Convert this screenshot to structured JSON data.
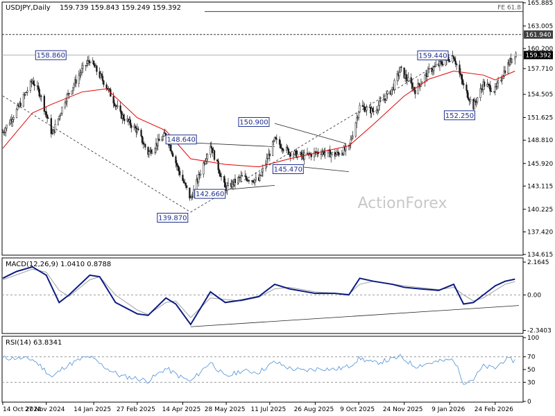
{
  "chart_data": [
    {
      "panel": "price",
      "type": "candlestick",
      "title": "USDJPY,Daily",
      "ohlc": "159.739 159.843 159.249 159.392",
      "watermark": "ActionForex",
      "ylim": [
        134.615,
        165.885
      ],
      "y_ticks": [
        "165.885",
        "163.005",
        "160.200",
        "157.710",
        "154.505",
        "151.625",
        "148.810",
        "145.920",
        "143.115",
        "140.225",
        "137.420",
        "134.615"
      ],
      "last_price": "159.392",
      "resistance_label": "161.940",
      "resistance_value": 161.94,
      "fe_label": "FE 61.8",
      "fe_value": 164.8,
      "pivot_labels": [
        {
          "text": "158.860",
          "date": "2024-12-03",
          "value": 158.86
        },
        {
          "text": "139.870",
          "date": "2025-04-22",
          "value": 139.87
        },
        {
          "text": "148.640",
          "date": "2025-03-28",
          "value": 148.64
        },
        {
          "text": "142.660",
          "date": "2025-05-27",
          "value": 142.66
        },
        {
          "text": "150.900",
          "date": "2025-07-16",
          "value": 150.9
        },
        {
          "text": "145.470",
          "date": "2025-08-14",
          "value": 145.47
        },
        {
          "text": "159.440",
          "date": "2026-01-13",
          "value": 159.44
        },
        {
          "text": "152.250",
          "date": "2026-02-02",
          "value": 152.25
        }
      ],
      "price_series": [
        [
          "2024-10-14",
          149.8
        ],
        [
          "2024-10-28",
          152.5
        ],
        [
          "2024-11-13",
          156.2
        ],
        [
          "2024-11-21",
          154.5
        ],
        [
          "2024-12-03",
          149.5
        ],
        [
          "2024-12-16",
          153.8
        ],
        [
          "2025-01-02",
          157.5
        ],
        [
          "2025-01-10",
          158.8
        ],
        [
          "2025-01-27",
          155.5
        ],
        [
          "2025-02-10",
          152.0
        ],
        [
          "2025-02-27",
          150.0
        ],
        [
          "2025-03-10",
          147.2
        ],
        [
          "2025-03-28",
          149.6
        ],
        [
          "2025-04-10",
          145.0
        ],
        [
          "2025-04-22",
          141.5
        ],
        [
          "2025-05-12",
          148.3
        ],
        [
          "2025-05-27",
          142.8
        ],
        [
          "2025-06-12",
          144.2
        ],
        [
          "2025-06-30",
          143.8
        ],
        [
          "2025-07-16",
          148.8
        ],
        [
          "2025-07-31",
          147.3
        ],
        [
          "2025-08-14",
          146.8
        ],
        [
          "2025-09-01",
          147.4
        ],
        [
          "2025-09-15",
          147.0
        ],
        [
          "2025-09-29",
          147.8
        ],
        [
          "2025-10-10",
          153.0
        ],
        [
          "2025-10-24",
          152.4
        ],
        [
          "2025-11-12",
          155.2
        ],
        [
          "2025-11-20",
          157.6
        ],
        [
          "2025-12-05",
          155.0
        ],
        [
          "2025-12-19",
          157.4
        ],
        [
          "2026-01-13",
          159.3
        ],
        [
          "2026-01-23",
          155.5
        ],
        [
          "2026-02-02",
          153.0
        ],
        [
          "2026-02-12",
          155.8
        ],
        [
          "2026-02-24",
          155.0
        ],
        [
          "2026-03-06",
          157.6
        ],
        [
          "2026-03-16",
          159.6
        ]
      ],
      "ma_series": [
        [
          "2024-10-14",
          147.8
        ],
        [
          "2024-11-13",
          152.2
        ],
        [
          "2024-12-03",
          153.3
        ],
        [
          "2025-01-02",
          154.8
        ],
        [
          "2025-01-27",
          155.2
        ],
        [
          "2025-02-27",
          151.6
        ],
        [
          "2025-03-28",
          150.0
        ],
        [
          "2025-04-22",
          146.5
        ],
        [
          "2025-05-27",
          145.8
        ],
        [
          "2025-06-30",
          145.5
        ],
        [
          "2025-07-31",
          146.5
        ],
        [
          "2025-08-26",
          147.2
        ],
        [
          "2025-09-29",
          148.1
        ],
        [
          "2025-10-24",
          150.8
        ],
        [
          "2025-11-24",
          154.3
        ],
        [
          "2025-12-19",
          156.4
        ],
        [
          "2026-01-13",
          157.4
        ],
        [
          "2026-02-12",
          156.9
        ],
        [
          "2026-02-24",
          156.3
        ],
        [
          "2026-03-16",
          157.4
        ]
      ],
      "x_ticks": [
        {
          "label": "14 Oct 2024",
          "date": "2024-10-14"
        },
        {
          "label": "27 Nov 2024",
          "date": "2024-11-27"
        },
        {
          "label": "14 Jan 2025",
          "date": "2025-01-14"
        },
        {
          "label": "27 Feb 2025",
          "date": "2025-02-27"
        },
        {
          "label": "14 Apr 2025",
          "date": "2025-04-14"
        },
        {
          "label": "28 May 2025",
          "date": "2025-05-28"
        },
        {
          "label": "11 Jul 2025",
          "date": "2025-07-11"
        },
        {
          "label": "26 Aug 2025",
          "date": "2025-08-26"
        },
        {
          "label": "9 Oct 2025",
          "date": "2025-10-09"
        },
        {
          "label": "24 Nov 2025",
          "date": "2025-11-24"
        },
        {
          "label": "9 Jan 2026",
          "date": "2026-01-09"
        },
        {
          "label": "24 Feb 2026",
          "date": "2026-02-24"
        }
      ],
      "trendlines": [
        {
          "from": [
            "2024-10-14",
            154.3
          ],
          "to": [
            "2025-04-22",
            139.87
          ],
          "style": "dashed"
        },
        {
          "from": [
            "2025-04-22",
            139.87
          ],
          "to": [
            "2026-01-13",
            159.44
          ],
          "style": "dashed"
        },
        {
          "from": [
            "2025-03-28",
            148.64
          ],
          "to": [
            "2025-07-16",
            148.0
          ],
          "style": "solid"
        },
        {
          "from": [
            "2025-05-27",
            142.66
          ],
          "to": [
            "2025-07-16",
            143.2
          ],
          "style": "solid"
        },
        {
          "from": [
            "2025-07-16",
            150.9
          ],
          "to": [
            "2025-09-26",
            148.4
          ],
          "style": "solid"
        },
        {
          "from": [
            "2025-08-14",
            145.47
          ],
          "to": [
            "2025-09-29",
            144.9
          ],
          "style": "solid"
        }
      ],
      "colors": {
        "candle_up": "#1a1a1a",
        "ma": "#e00000",
        "label_border": "#1e2f8c",
        "label_text": "#1e2f8c"
      }
    },
    {
      "panel": "macd",
      "type": "line",
      "title": "MACD(12,26,9) 1.0410 0.8788",
      "ylim": [
        -2.5,
        2.35
      ],
      "y_ticks": [
        "2.1645",
        "0.00",
        "-2.3403"
      ],
      "zero_line": 0,
      "macd_series": [
        [
          "2024-10-14",
          1.1
        ],
        [
          "2024-10-28",
          1.55
        ],
        [
          "2024-11-13",
          1.85
        ],
        [
          "2024-11-27",
          1.3
        ],
        [
          "2024-12-10",
          -0.5
        ],
        [
          "2024-12-20",
          0.0
        ],
        [
          "2025-01-10",
          1.3
        ],
        [
          "2025-01-20",
          1.2
        ],
        [
          "2025-02-05",
          -0.5
        ],
        [
          "2025-02-27",
          -1.25
        ],
        [
          "2025-03-10",
          -1.35
        ],
        [
          "2025-03-28",
          -0.2
        ],
        [
          "2025-04-07",
          -0.6
        ],
        [
          "2025-04-22",
          -1.95
        ],
        [
          "2025-05-12",
          0.2
        ],
        [
          "2025-05-27",
          -0.5
        ],
        [
          "2025-06-12",
          -0.35
        ],
        [
          "2025-06-30",
          -0.1
        ],
        [
          "2025-07-16",
          0.7
        ],
        [
          "2025-07-31",
          0.4
        ],
        [
          "2025-08-26",
          0.1
        ],
        [
          "2025-09-15",
          0.1
        ],
        [
          "2025-09-29",
          0.0
        ],
        [
          "2025-10-10",
          1.1
        ],
        [
          "2025-10-24",
          0.9
        ],
        [
          "2025-11-12",
          0.7
        ],
        [
          "2025-11-24",
          0.5
        ],
        [
          "2025-12-10",
          0.4
        ],
        [
          "2025-12-29",
          0.3
        ],
        [
          "2026-01-13",
          0.7
        ],
        [
          "2026-01-23",
          -0.6
        ],
        [
          "2026-02-02",
          -0.5
        ],
        [
          "2026-02-12",
          0.0
        ],
        [
          "2026-02-24",
          0.6
        ],
        [
          "2026-03-06",
          0.9
        ],
        [
          "2026-03-16",
          1.04
        ]
      ],
      "signal_series": [
        [
          "2024-10-14",
          1.0
        ],
        [
          "2024-11-13",
          1.7
        ],
        [
          "2024-11-27",
          1.5
        ],
        [
          "2024-12-10",
          0.3
        ],
        [
          "2024-12-20",
          -0.1
        ],
        [
          "2025-01-10",
          1.0
        ],
        [
          "2025-01-20",
          1.2
        ],
        [
          "2025-02-05",
          0.0
        ],
        [
          "2025-02-27",
          -1.0
        ],
        [
          "2025-03-10",
          -1.3
        ],
        [
          "2025-03-28",
          -0.5
        ],
        [
          "2025-04-07",
          -0.4
        ],
        [
          "2025-04-22",
          -1.5
        ],
        [
          "2025-05-12",
          -0.2
        ],
        [
          "2025-05-27",
          -0.3
        ],
        [
          "2025-06-12",
          -0.4
        ],
        [
          "2025-06-30",
          -0.15
        ],
        [
          "2025-07-16",
          0.4
        ],
        [
          "2025-07-31",
          0.5
        ],
        [
          "2025-08-26",
          0.2
        ],
        [
          "2025-09-29",
          0.05
        ],
        [
          "2025-10-10",
          0.7
        ],
        [
          "2025-10-24",
          0.9
        ],
        [
          "2025-11-24",
          0.6
        ],
        [
          "2025-12-29",
          0.35
        ],
        [
          "2026-01-13",
          0.5
        ],
        [
          "2026-01-23",
          0.0
        ],
        [
          "2026-02-02",
          -0.4
        ],
        [
          "2026-02-12",
          -0.2
        ],
        [
          "2026-02-24",
          0.3
        ],
        [
          "2026-03-06",
          0.7
        ],
        [
          "2026-03-16",
          0.88
        ]
      ],
      "trendline": {
        "from": [
          "2025-04-22",
          -2.1
        ],
        "to": [
          "2026-03-20",
          -0.7
        ]
      },
      "colors": {
        "macd": "#0a1a80",
        "signal": "#a0a0a0"
      }
    },
    {
      "panel": "rsi",
      "type": "line",
      "title": "RSI(14) 63.8341",
      "ylim": [
        0,
        100
      ],
      "y_ticks": [
        "100",
        "70",
        "50",
        "30",
        "0"
      ],
      "levels": [
        70,
        30
      ],
      "rsi_series": [
        [
          "2024-10-14",
          68
        ],
        [
          "2024-10-28",
          68
        ],
        [
          "2024-11-13",
          66
        ],
        [
          "2024-11-21",
          56
        ],
        [
          "2024-12-03",
          38
        ],
        [
          "2024-12-16",
          55
        ],
        [
          "2025-01-02",
          67
        ],
        [
          "2025-01-10",
          70
        ],
        [
          "2025-01-27",
          52
        ],
        [
          "2025-02-10",
          40
        ],
        [
          "2025-02-27",
          36
        ],
        [
          "2025-03-10",
          32
        ],
        [
          "2025-03-28",
          52
        ],
        [
          "2025-04-10",
          40
        ],
        [
          "2025-04-22",
          31
        ],
        [
          "2025-05-12",
          62
        ],
        [
          "2025-05-27",
          38
        ],
        [
          "2025-06-12",
          48
        ],
        [
          "2025-06-30",
          46
        ],
        [
          "2025-07-16",
          62
        ],
        [
          "2025-07-31",
          52
        ],
        [
          "2025-08-14",
          48
        ],
        [
          "2025-09-01",
          52
        ],
        [
          "2025-09-15",
          50
        ],
        [
          "2025-09-29",
          55
        ],
        [
          "2025-10-10",
          68
        ],
        [
          "2025-10-24",
          60
        ],
        [
          "2025-11-12",
          66
        ],
        [
          "2025-11-20",
          70
        ],
        [
          "2025-12-05",
          55
        ],
        [
          "2025-12-19",
          60
        ],
        [
          "2026-01-13",
          66
        ],
        [
          "2026-01-23",
          30
        ],
        [
          "2026-02-02",
          35
        ],
        [
          "2026-02-12",
          55
        ],
        [
          "2026-02-24",
          52
        ],
        [
          "2026-03-06",
          66
        ],
        [
          "2026-03-16",
          64
        ]
      ],
      "colors": {
        "rsi": "#4a90d9"
      }
    }
  ]
}
